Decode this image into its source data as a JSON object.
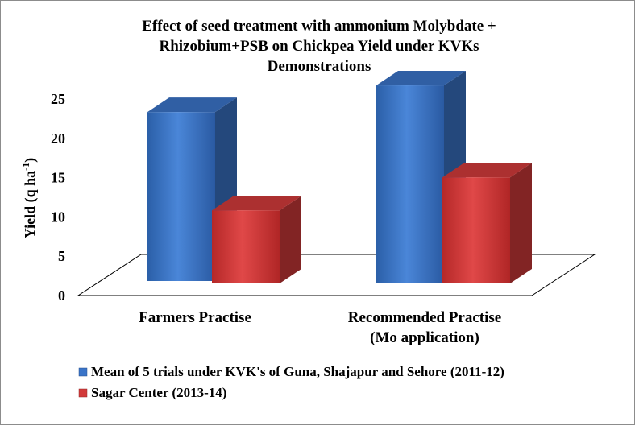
{
  "chart_data": {
    "type": "bar",
    "title_lines": [
      "Effect of seed treatment with ammonium Molybdate +",
      "Rhizobium+PSB on Chickpea Yield  under KVKs",
      "Demonstrations"
    ],
    "ylabel_main": "Yield  (q ha",
    "ylabel_sup": "-1",
    "ylabel_close": ")",
    "xlabel": "",
    "ylim": [
      0,
      25
    ],
    "yticks": [
      0,
      5,
      10,
      15,
      20,
      25
    ],
    "categories": [
      [
        "Farmers Practise"
      ],
      [
        "Recommended Practise",
        "(Mo application)"
      ]
    ],
    "series": [
      {
        "name": "Mean of 5 trials under KVK's of Guna, Shajapur and Sehore (2011-12)",
        "values": [
          21.5,
          25.2
        ],
        "color": "#3a74c8"
      },
      {
        "name": "Sagar Center (2013-14)",
        "values": [
          9.3,
          13.5
        ],
        "color": "#d23a3a"
      }
    ],
    "legend_position": "bottom",
    "grid": false,
    "style": "3d-column"
  }
}
